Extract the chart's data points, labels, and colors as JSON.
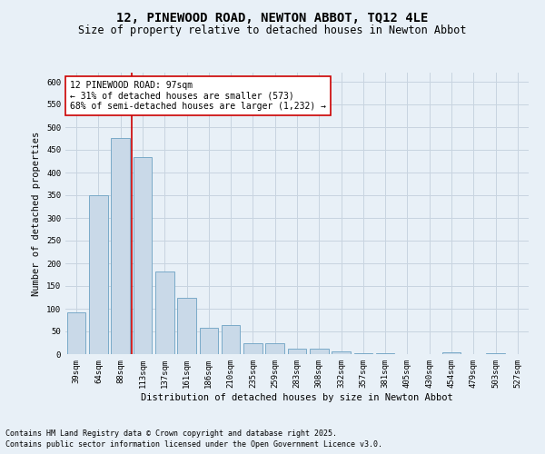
{
  "title_line1": "12, PINEWOOD ROAD, NEWTON ABBOT, TQ12 4LE",
  "title_line2": "Size of property relative to detached houses in Newton Abbot",
  "xlabel": "Distribution of detached houses by size in Newton Abbot",
  "ylabel": "Number of detached properties",
  "categories": [
    "39sqm",
    "64sqm",
    "88sqm",
    "113sqm",
    "137sqm",
    "161sqm",
    "186sqm",
    "210sqm",
    "235sqm",
    "259sqm",
    "283sqm",
    "308sqm",
    "332sqm",
    "357sqm",
    "381sqm",
    "405sqm",
    "430sqm",
    "454sqm",
    "479sqm",
    "503sqm",
    "527sqm"
  ],
  "values": [
    93,
    350,
    477,
    435,
    182,
    125,
    58,
    65,
    25,
    25,
    12,
    12,
    7,
    3,
    2,
    0,
    0,
    4,
    0,
    3,
    0
  ],
  "bar_color": "#c9d9e8",
  "bar_edge_color": "#7aaac8",
  "grid_color": "#c8d4e0",
  "bg_color": "#e8f0f7",
  "vline_x_index": 2,
  "vline_color": "#cc0000",
  "annotation_text": "12 PINEWOOD ROAD: 97sqm\n← 31% of detached houses are smaller (573)\n68% of semi-detached houses are larger (1,232) →",
  "annotation_box_color": "#ffffff",
  "annotation_box_edge_color": "#cc0000",
  "ylim": [
    0,
    620
  ],
  "yticks": [
    0,
    50,
    100,
    150,
    200,
    250,
    300,
    350,
    400,
    450,
    500,
    550,
    600
  ],
  "footer_line1": "Contains HM Land Registry data © Crown copyright and database right 2025.",
  "footer_line2": "Contains public sector information licensed under the Open Government Licence v3.0.",
  "title_fontsize": 10,
  "subtitle_fontsize": 8.5,
  "axis_label_fontsize": 7.5,
  "tick_fontsize": 6.5,
  "annotation_fontsize": 7,
  "footer_fontsize": 6
}
